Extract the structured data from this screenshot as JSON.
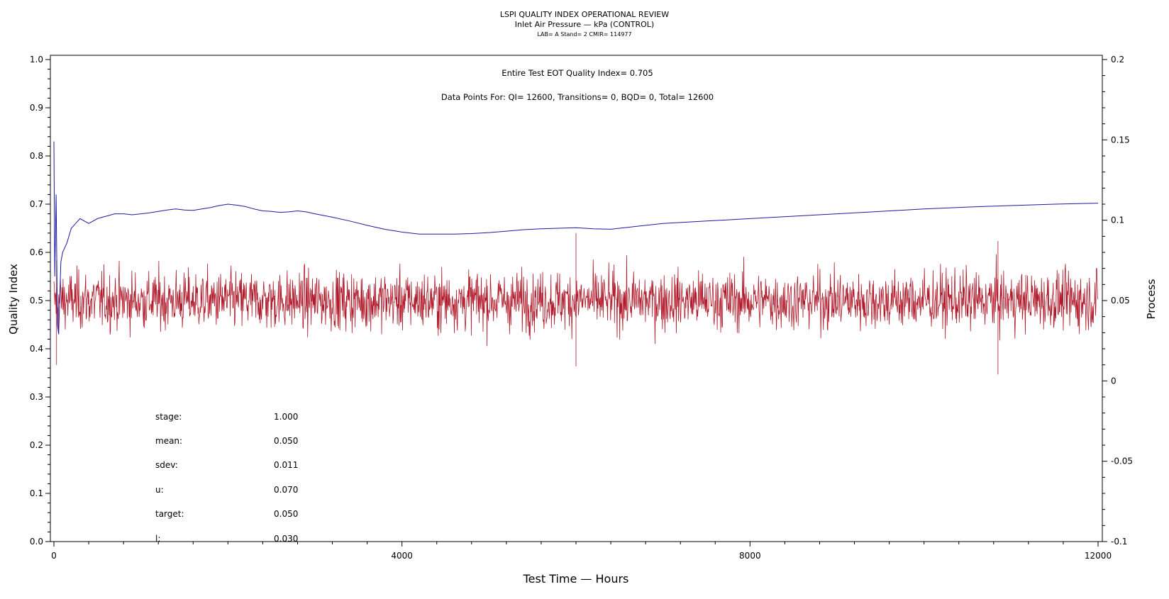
{
  "chart_data": {
    "type": "line",
    "title": "LSPI QUALITY INDEX OPERATIONAL REVIEW",
    "subtitle": "Inlet Air Pressure — kPa (CONTROL)",
    "subtitle2": "LAB= A Stand= 2 CMIR= 114977",
    "xlabel": "Test Time — Hours",
    "ylabel_left": "Quality Index",
    "ylabel_right": "Process",
    "xlim": [
      0,
      12000
    ],
    "ylim_left": [
      0,
      1.0
    ],
    "ylim_right": [
      -0.1,
      0.2
    ],
    "x_ticks": [
      "0",
      "4000",
      "8000",
      "12000"
    ],
    "y_left_ticks": [
      "0.0",
      "0.1",
      "0.2",
      "0.3",
      "0.4",
      "0.5",
      "0.6",
      "0.7",
      "0.8",
      "0.9",
      "1.0"
    ],
    "y_right_ticks": [
      "-0.1",
      "-0.05",
      "0",
      "0.05",
      "0.1",
      "0.15",
      "0.2"
    ],
    "annotations": {
      "eot": "Entire Test EOT Quality Index=   0.705",
      "points": "Data Points For: QI= 12600, Transitions=      0, BQD=      0, Total= 12600"
    },
    "stats": [
      {
        "label": "stage:",
        "value": "1.000"
      },
      {
        "label": "mean:",
        "value": "0.050"
      },
      {
        "label": "sdev:",
        "value": "0.011"
      },
      {
        "label": "u:",
        "value": "0.070"
      },
      {
        "label": "target:",
        "value": "0.050"
      },
      {
        "label": "l:",
        "value": "0.030"
      }
    ],
    "series": [
      {
        "axis": "left",
        "color": "#1a1aa6",
        "x": [
          0,
          10,
          25,
          40,
          55,
          80,
          100,
          150,
          200,
          250,
          300,
          400,
          500,
          600,
          700,
          800,
          900,
          1000,
          1100,
          1200,
          1300,
          1400,
          1500,
          1600,
          1700,
          1800,
          1900,
          2000,
          2100,
          2200,
          2300,
          2400,
          2500,
          2600,
          2700,
          2800,
          2900,
          3000,
          3200,
          3400,
          3600,
          3800,
          4000,
          4200,
          4400,
          4600,
          4800,
          5000,
          5200,
          5400,
          5600,
          5800,
          6000,
          6200,
          6400,
          6600,
          6800,
          7000,
          7500,
          8000,
          8500,
          9000,
          9500,
          10000,
          10500,
          11000,
          11500,
          12000
        ],
        "values": [
          0.83,
          0.55,
          0.72,
          0.45,
          0.43,
          0.58,
          0.6,
          0.62,
          0.65,
          0.66,
          0.67,
          0.66,
          0.67,
          0.675,
          0.68,
          0.68,
          0.678,
          0.68,
          0.682,
          0.685,
          0.688,
          0.69,
          0.688,
          0.687,
          0.69,
          0.693,
          0.697,
          0.7,
          0.698,
          0.695,
          0.69,
          0.686,
          0.685,
          0.683,
          0.684,
          0.686,
          0.684,
          0.68,
          0.673,
          0.665,
          0.656,
          0.648,
          0.642,
          0.638,
          0.638,
          0.638,
          0.639,
          0.641,
          0.644,
          0.647,
          0.649,
          0.65,
          0.651,
          0.649,
          0.648,
          0.652,
          0.656,
          0.66,
          0.665,
          0.67,
          0.675,
          0.68,
          0.685,
          0.69,
          0.694,
          0.697,
          0.7,
          0.702
        ]
      },
      {
        "axis": "right",
        "color": "#b01a2a",
        "mean": 0.05,
        "sdev": 0.011,
        "n": 2400,
        "spikes": [
          {
            "x": 6000,
            "high": 0.092,
            "low": 0.009
          },
          {
            "x": 10850,
            "high": 0.087,
            "low": 0.004
          },
          {
            "x": 30,
            "high": 0.075,
            "low": 0.01
          }
        ]
      }
    ]
  }
}
